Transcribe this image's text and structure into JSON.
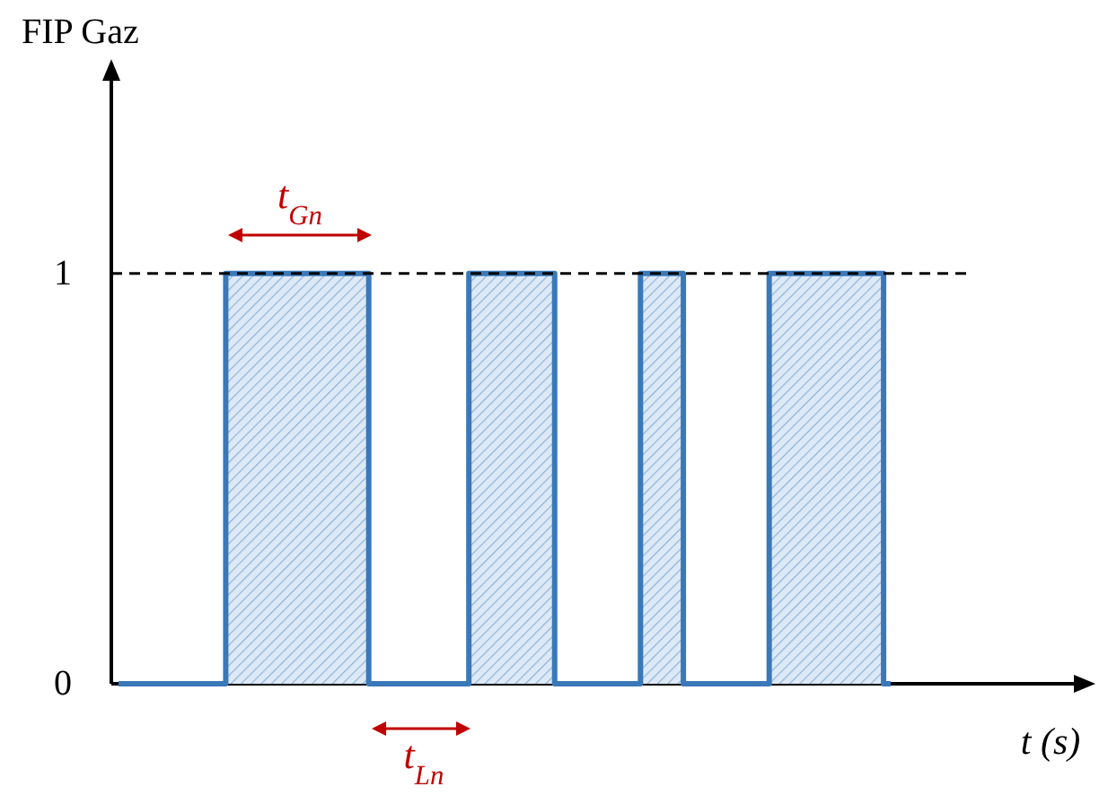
{
  "chart_data": {
    "type": "area",
    "ylabel": "FIP Gaz",
    "xlabel": "t (s)",
    "categories": [
      null,
      null,
      null,
      null,
      null,
      null,
      null,
      null,
      null,
      null,
      null,
      null,
      null,
      null,
      null,
      null,
      null,
      null,
      null,
      null,
      null,
      null,
      null,
      null,
      null,
      null,
      null,
      null,
      null,
      null,
      null,
      null,
      null,
      null,
      null,
      null,
      null,
      null,
      null,
      null,
      null,
      null,
      null,
      null,
      null,
      null,
      null,
      null,
      null,
      null,
      null,
      null,
      null,
      null,
      null
    ],
    "series": [
      {
        "color": "#3a78b8",
        "values": [
          0,
          0,
          0,
          0,
          0,
          0,
          0,
          0,
          1,
          1,
          1,
          1,
          1,
          1,
          1,
          1,
          1,
          1,
          0,
          0,
          0,
          0,
          0,
          0,
          0,
          1,
          1,
          1,
          1,
          1,
          1,
          0,
          0,
          0,
          0,
          0,
          0,
          1,
          1,
          1,
          0,
          0,
          0,
          0,
          0,
          0,
          1,
          1,
          1,
          1,
          1,
          1,
          1,
          1,
          0
        ]
      }
    ],
    "ylim": [
      0,
      1.47
    ],
    "yticks": [
      0,
      1
    ],
    "grid": false,
    "ref_lines": [
      {
        "axis": "y",
        "value": 1,
        "color": "#000000",
        "line_style": "dashed"
      }
    ],
    "annotations": [
      "t$_{Gn}$",
      "t$_{Ln}$"
    ]
  }
}
